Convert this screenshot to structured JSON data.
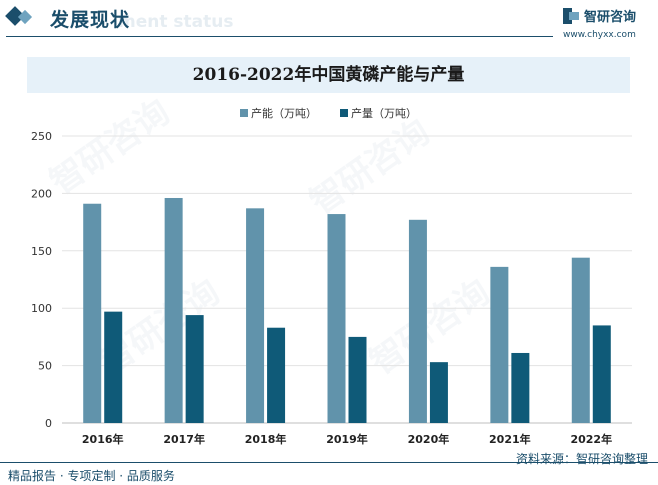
{
  "header": {
    "section_title": "发展现状",
    "section_subtitle_ghost": "ment status",
    "brand_name": "智研咨询",
    "brand_url": "www.chyxx.com"
  },
  "watermark_text": "智研咨询",
  "footer": {
    "left_text": "精品报告 · 专项定制 · 品质服务",
    "source_text": "资料来源：智研咨询整理"
  },
  "colors": {
    "capacity": "#6193ab",
    "output": "#0f5a78",
    "brand": "#1b4e6b",
    "title_bg": "#e6f1f9"
  },
  "chart_data": {
    "type": "bar",
    "title": "2016-2022年中国黄磷产能与产量",
    "categories": [
      "2016年",
      "2017年",
      "2018年",
      "2019年",
      "2020年",
      "2021年",
      "2022年"
    ],
    "series": [
      {
        "name": "产能（万吨）",
        "values": [
          191,
          196,
          187,
          182,
          177,
          136,
          144
        ]
      },
      {
        "name": "产量（万吨）",
        "values": [
          97,
          94,
          83,
          75,
          53,
          61,
          85
        ]
      }
    ],
    "ylim": [
      0,
      250
    ],
    "yticks": [
      "0",
      "50",
      "100",
      "150",
      "200",
      "250"
    ],
    "grid": true,
    "legend_position": "top-center"
  }
}
